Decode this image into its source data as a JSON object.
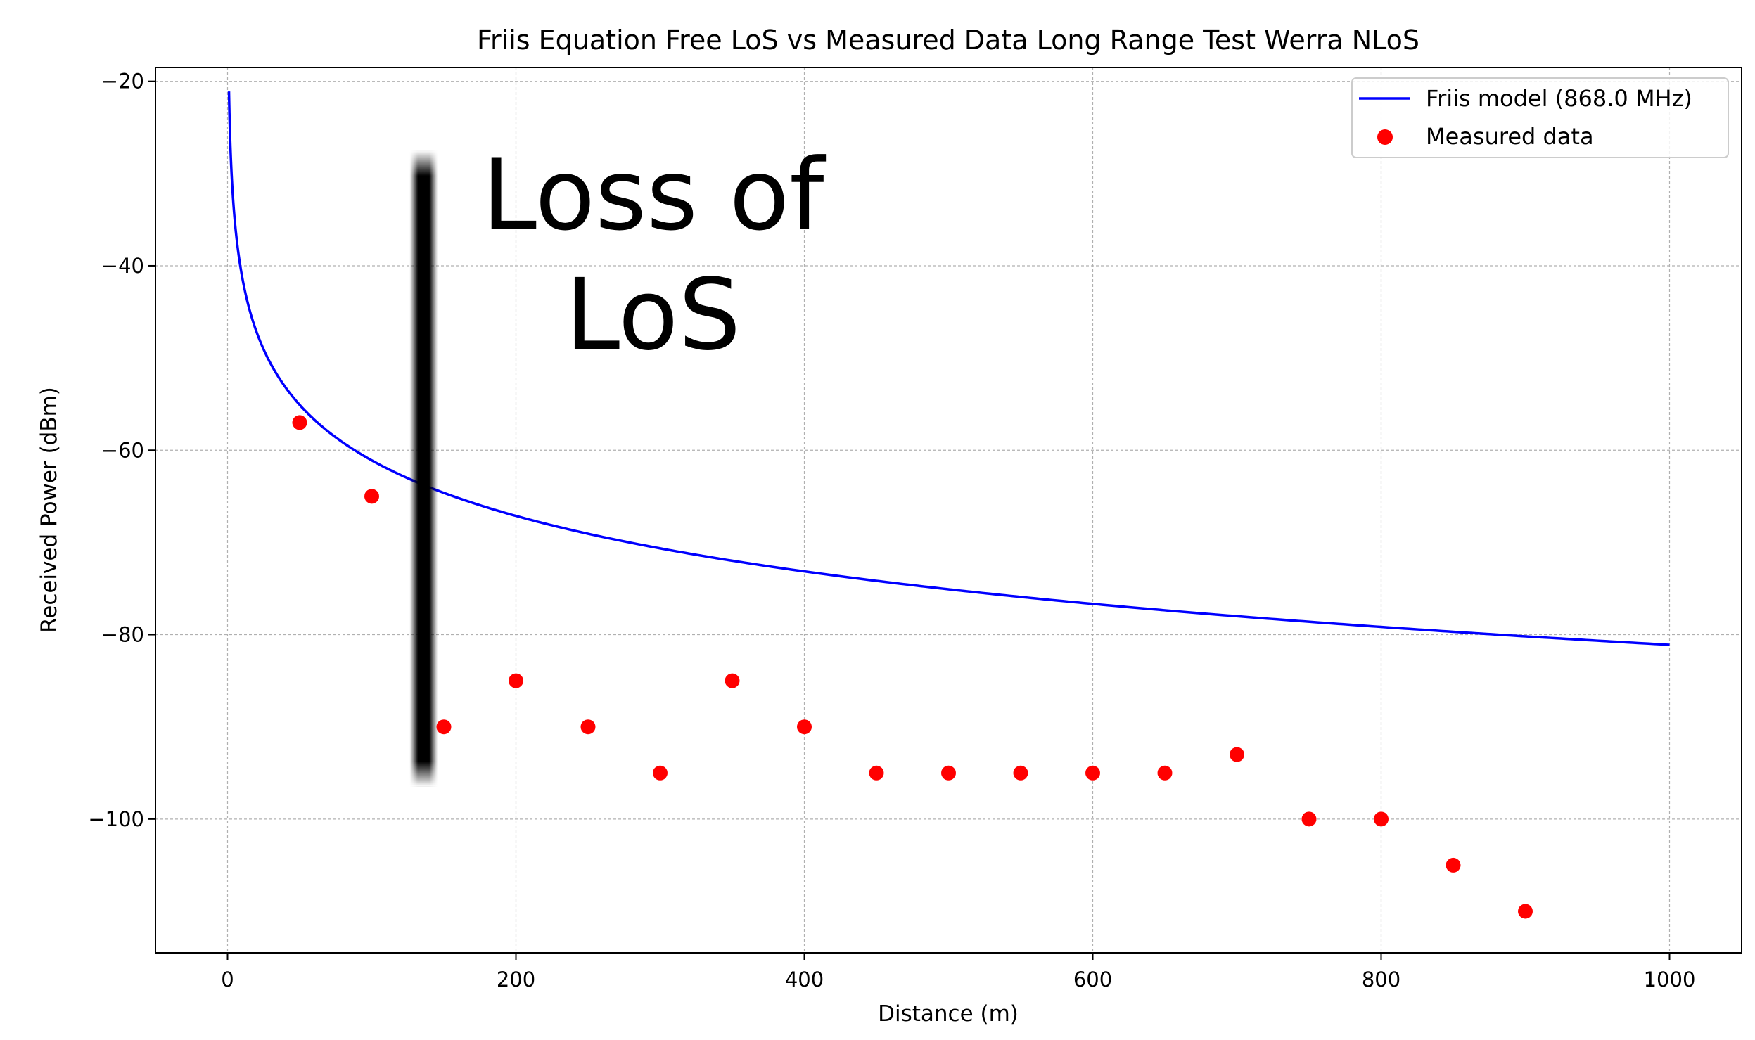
{
  "chart_data": {
    "type": "line",
    "title": "Friis Equation Free LoS vs Measured Data Long Range Test Werra NLoS",
    "xlabel": "Distance (m)",
    "ylabel": "Received Power (dBm)",
    "xlim": [
      -50,
      1050
    ],
    "ylim": [
      -114.5,
      -18.5
    ],
    "xticks": [
      0,
      200,
      400,
      600,
      800,
      1000
    ],
    "yticks": [
      -20,
      -40,
      -60,
      -80,
      -100
    ],
    "xtick_labels": [
      "0",
      "200",
      "400",
      "600",
      "800",
      "1000"
    ],
    "ytick_labels": [
      "−20",
      "−40",
      "−60",
      "−80",
      "−100"
    ],
    "grid": true,
    "legend_position": "top-right",
    "friis": {
      "name": "Friis model (868.0 MHz)",
      "color": "#0000ff",
      "ref_distance_m": 1,
      "ref_power_dbm": -21.1,
      "path_loss_exponent": 2,
      "x_range": [
        1,
        1000
      ]
    },
    "measured": {
      "name": "Measured data",
      "color": "#ff0000",
      "x": [
        50,
        100,
        150,
        200,
        250,
        300,
        350,
        400,
        450,
        500,
        550,
        600,
        650,
        700,
        750,
        800,
        850,
        900
      ],
      "y": [
        -57,
        -65,
        -90,
        -85,
        -90,
        -95,
        -85,
        -90,
        -95,
        -95,
        -95,
        -95,
        -95,
        -93,
        -100,
        -100,
        -105,
        -110
      ]
    },
    "annotation": {
      "lines": [
        "Loss of",
        "LoS"
      ],
      "marker_x": 136,
      "marker_y_range": [
        -27.5,
        -96.5
      ],
      "text_x": 295,
      "text_y": [
        -36,
        -49
      ]
    }
  }
}
